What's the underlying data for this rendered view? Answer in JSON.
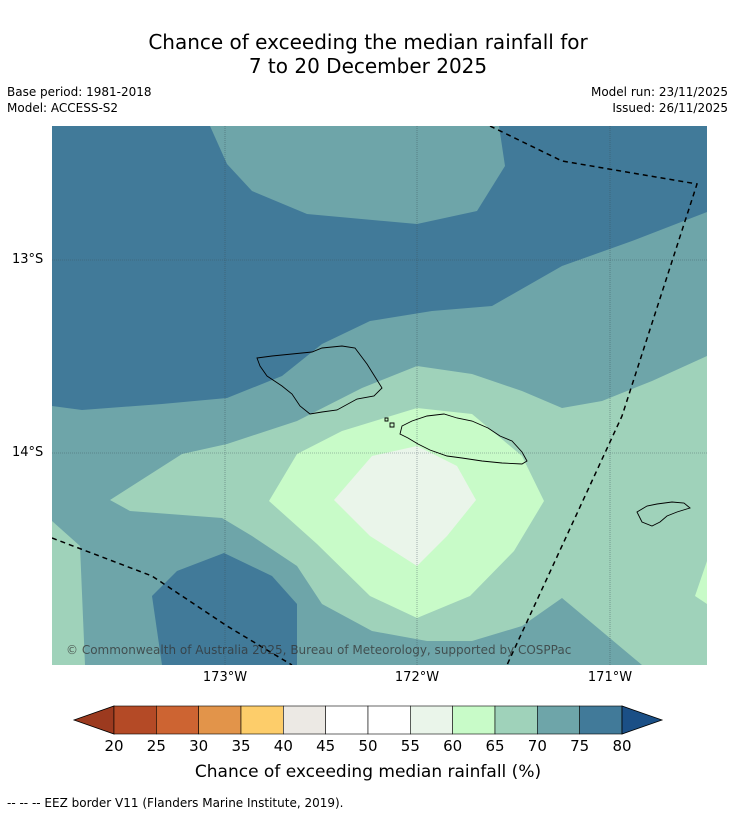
{
  "title_line1": "Chance of exceeding the median rainfall for",
  "title_line2": "7 to 20 December 2025",
  "base_period": "Base period: 1981-2018",
  "model": "Model: ACCESS-S2",
  "model_run": "Model run: 23/11/2025",
  "issued": "Issued: 26/11/2025",
  "lat_labels": [
    "13°S",
    "14°S"
  ],
  "lon_labels": [
    "173°W",
    "172°W",
    "171°W"
  ],
  "copyright": "© Commonwealth of Australia 2025, Bureau of Meteorology, supported by COSPPac",
  "colorbar": {
    "label": "Chance of exceeding median rainfall (%)",
    "ticks": [
      "20",
      "25",
      "30",
      "35",
      "40",
      "45",
      "50",
      "55",
      "60",
      "65",
      "70",
      "75",
      "80"
    ],
    "low_extend_color": "#9c3a1f",
    "high_extend_color": "#1b4f86",
    "colors": [
      "#b44a26",
      "#cd6432",
      "#e2944a",
      "#fdcd6a",
      "#ece9e4",
      "#ffffff",
      "#ffffff",
      "#eaf5ea",
      "#c8fbc8",
      "#9fd2ba",
      "#6ea5a9",
      "#417a99"
    ]
  },
  "footer": "--  --  -- EEZ border V11 (Flanders Marine Institute, 2019).",
  "colors": {
    "band_75_80": "#417a99",
    "band_70_75": "#6ea5a9",
    "band_65_70": "#9fd2ba",
    "band_60_65": "#c8fbc8",
    "band_55_60": "#eaf5ea"
  }
}
